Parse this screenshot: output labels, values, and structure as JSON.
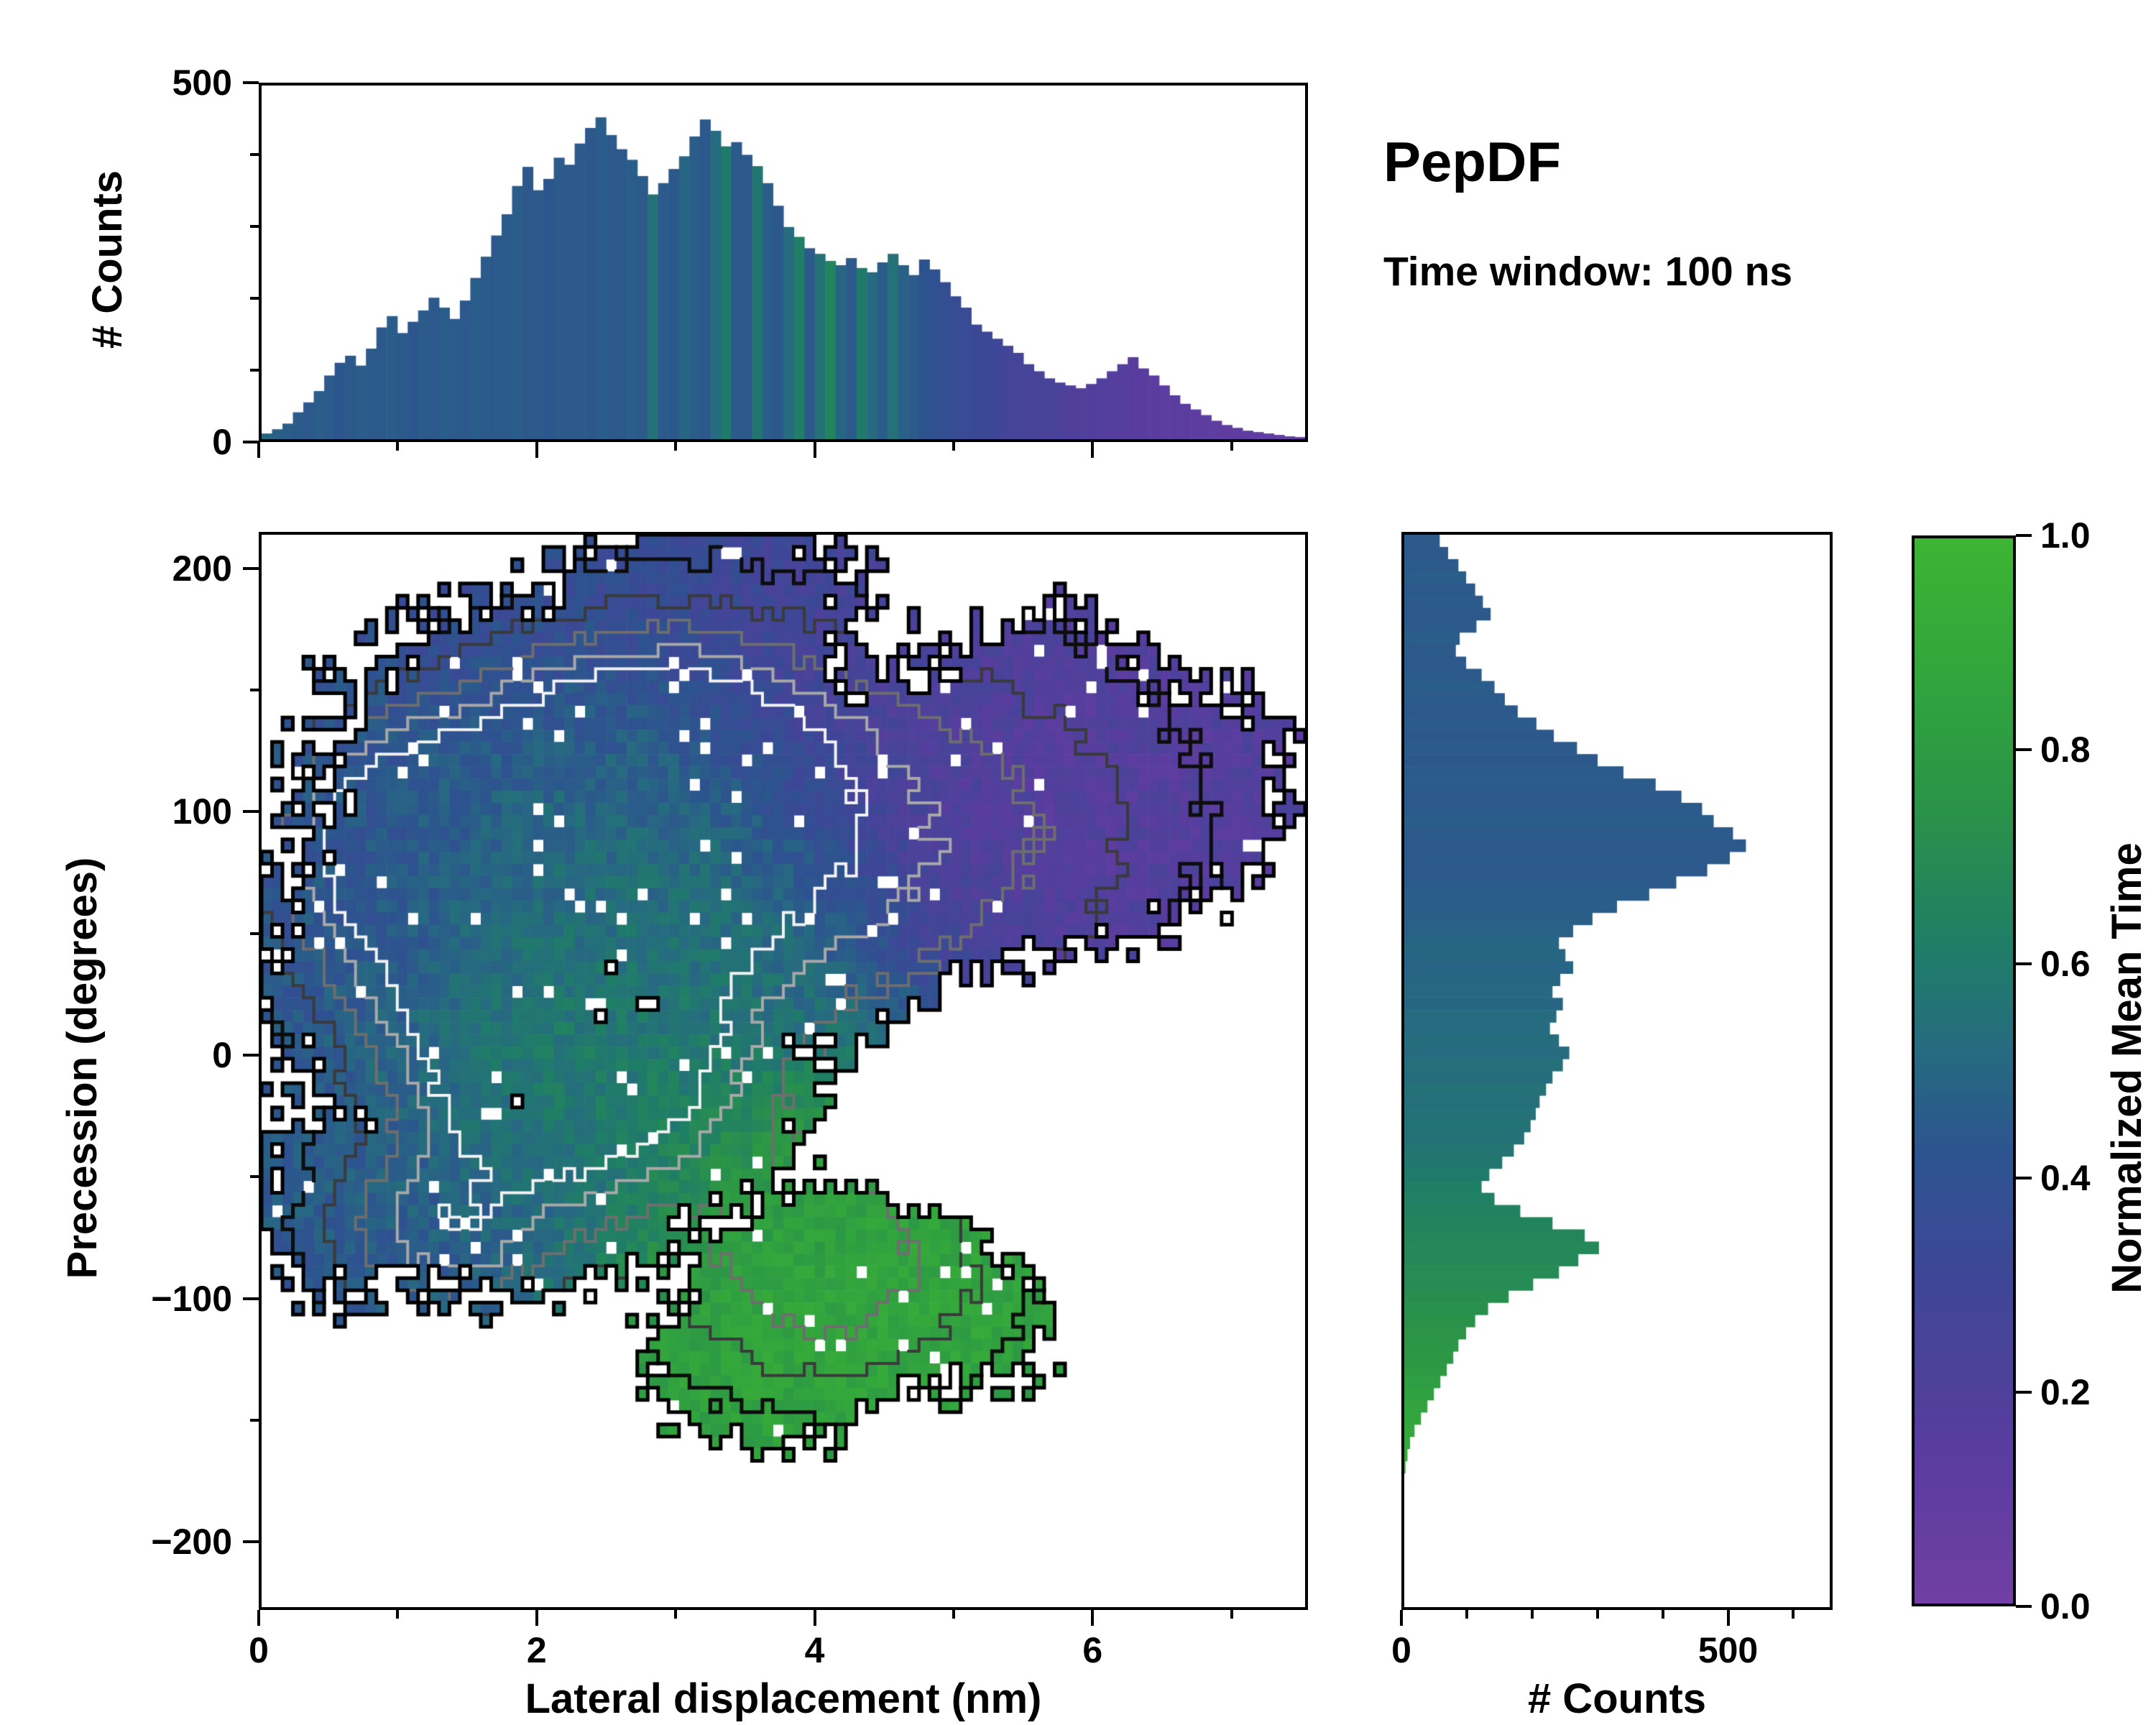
{
  "title": "PepDF",
  "subtitle": "Time window: 100 ns",
  "labels": {
    "top_ylabel": "# Counts",
    "main_xlabel": "Lateral displacement (nm)",
    "main_ylabel": "Precession (degrees)",
    "right_xlabel": "# Counts",
    "colorbar_label": "Normalized Mean Time"
  },
  "chart_data": {
    "type": "heatmap",
    "subtype": "2d-histogram-with-marginal-histograms-and-contours",
    "title": "PepDF",
    "annotation": "Time window: 100 ns",
    "x_axis": {
      "label": "Lateral displacement (nm)",
      "range": [
        0,
        7.55
      ],
      "ticks": [
        {
          "v": 0,
          "label": "0"
        },
        {
          "v": 2,
          "label": "2"
        },
        {
          "v": 4,
          "label": "4"
        },
        {
          "v": 6,
          "label": "6"
        }
      ],
      "minor_ticks": [
        1,
        3,
        5,
        7
      ]
    },
    "y_axis": {
      "label": "Precession (degrees)",
      "range": [
        -228,
        215
      ],
      "ticks": [
        {
          "v": 200,
          "label": "200"
        },
        {
          "v": 100,
          "label": "100"
        },
        {
          "v": 0,
          "label": "0"
        },
        {
          "v": -100,
          "label": "−100"
        },
        {
          "v": -200,
          "label": "−200"
        }
      ],
      "minor_ticks": [
        150,
        50,
        -50,
        -150
      ]
    },
    "colorbar": {
      "label": "Normalized Mean Time",
      "range": [
        0,
        1
      ],
      "ticks": [
        {
          "v": 0.0,
          "label": "0.0"
        },
        {
          "v": 0.2,
          "label": "0.2"
        },
        {
          "v": 0.4,
          "label": "0.4"
        },
        {
          "v": 0.6,
          "label": "0.6"
        },
        {
          "v": 0.8,
          "label": "0.8"
        },
        {
          "v": 1.0,
          "label": "1.0"
        }
      ],
      "stops": [
        {
          "t": 0.0,
          "color": "#713ea5"
        },
        {
          "t": 0.15,
          "color": "#583d9e"
        },
        {
          "t": 0.3,
          "color": "#3f4697"
        },
        {
          "t": 0.42,
          "color": "#2d538f"
        },
        {
          "t": 0.52,
          "color": "#266b80"
        },
        {
          "t": 0.62,
          "color": "#1f7e66"
        },
        {
          "t": 0.75,
          "color": "#2a9348"
        },
        {
          "t": 0.88,
          "color": "#33a63c"
        },
        {
          "t": 1.0,
          "color": "#3eb434"
        }
      ]
    },
    "top_histogram": {
      "ylabel": "# Counts",
      "ylim": [
        0,
        500
      ],
      "yticks": [
        {
          "v": 0,
          "label": "0"
        },
        {
          "v": 500,
          "label": "500"
        }
      ],
      "minor_yticks": [
        100,
        200,
        300,
        400
      ],
      "bin_range": [
        0,
        7.5
      ],
      "counts": [
        8,
        14,
        22,
        38,
        52,
        68,
        90,
        108,
        118,
        104,
        128,
        158,
        174,
        150,
        166,
        182,
        200,
        186,
        170,
        196,
        228,
        258,
        288,
        318,
        358,
        385,
        352,
        368,
        398,
        388,
        418,
        440,
        455,
        430,
        410,
        395,
        372,
        346,
        362,
        382,
        400,
        428,
        452,
        436,
        414,
        420,
        402,
        386,
        362,
        330,
        300,
        286,
        270,
        262,
        252,
        246,
        256,
        242,
        236,
        250,
        262,
        246,
        232,
        254,
        240,
        222,
        202,
        186,
        162,
        152,
        142,
        132,
        122,
        106,
        96,
        86,
        80,
        76,
        72,
        78,
        86,
        96,
        106,
        116,
        100,
        90,
        76,
        62,
        50,
        42,
        34,
        26,
        20,
        16,
        12,
        10,
        8,
        6,
        4,
        3
      ],
      "mean_time": [
        0.5,
        0.48,
        0.46,
        0.45,
        0.44,
        0.46,
        0.45,
        0.43,
        0.44,
        0.46,
        0.45,
        0.44,
        0.46,
        0.45,
        0.43,
        0.45,
        0.44,
        0.46,
        0.45,
        0.44,
        0.46,
        0.45,
        0.44,
        0.45,
        0.46,
        0.44,
        0.45,
        0.43,
        0.45,
        0.44,
        0.45,
        0.44,
        0.46,
        0.45,
        0.44,
        0.46,
        0.45,
        0.55,
        0.45,
        0.44,
        0.5,
        0.46,
        0.44,
        0.52,
        0.6,
        0.45,
        0.44,
        0.58,
        0.46,
        0.44,
        0.52,
        0.62,
        0.45,
        0.55,
        0.65,
        0.5,
        0.45,
        0.6,
        0.52,
        0.46,
        0.55,
        0.48,
        0.45,
        0.42,
        0.4,
        0.38,
        0.36,
        0.35,
        0.33,
        0.32,
        0.3,
        0.28,
        0.27,
        0.26,
        0.25,
        0.24,
        0.22,
        0.2,
        0.2,
        0.19,
        0.18,
        0.17,
        0.16,
        0.15,
        0.15,
        0.14,
        0.14,
        0.13,
        0.13,
        0.12,
        0.12,
        0.12,
        0.11,
        0.11,
        0.1,
        0.1,
        0.1,
        0.1,
        0.1,
        0.1
      ]
    },
    "right_histogram": {
      "xlabel": "# Counts",
      "xlim": [
        0,
        660
      ],
      "xticks": [
        {
          "v": 0,
          "label": "0"
        },
        {
          "v": 500,
          "label": "500"
        }
      ],
      "minor_xticks": [
        100,
        200,
        300,
        400,
        600
      ],
      "bin_range": [
        215,
        -225
      ],
      "counts": [
        55,
        68,
        84,
        96,
        110,
        122,
        134,
        112,
        86,
        80,
        96,
        120,
        140,
        156,
        176,
        205,
        232,
        268,
        300,
        340,
        390,
        430,
        462,
        480,
        510,
        530,
        505,
        470,
        422,
        380,
        330,
        292,
        262,
        240,
        250,
        262,
        242,
        230,
        246,
        236,
        226,
        240,
        256,
        246,
        230,
        220,
        210,
        204,
        196,
        186,
        170,
        152,
        132,
        120,
        140,
        180,
        230,
        280,
        302,
        270,
        240,
        200,
        162,
        130,
        110,
        96,
        84,
        76,
        66,
        56,
        46,
        36,
        26,
        16,
        9,
        5,
        2,
        0,
        0,
        0,
        0,
        0,
        0,
        0,
        0,
        0,
        0,
        0
      ],
      "mean_time": [
        0.45,
        0.44,
        0.45,
        0.46,
        0.44,
        0.45,
        0.44,
        0.45,
        0.46,
        0.45,
        0.44,
        0.45,
        0.46,
        0.45,
        0.44,
        0.45,
        0.44,
        0.45,
        0.44,
        0.45,
        0.45,
        0.44,
        0.45,
        0.46,
        0.45,
        0.44,
        0.45,
        0.44,
        0.45,
        0.46,
        0.46,
        0.47,
        0.48,
        0.5,
        0.5,
        0.49,
        0.5,
        0.51,
        0.5,
        0.52,
        0.52,
        0.53,
        0.52,
        0.54,
        0.53,
        0.55,
        0.54,
        0.55,
        0.56,
        0.55,
        0.57,
        0.58,
        0.6,
        0.62,
        0.63,
        0.64,
        0.66,
        0.67,
        0.68,
        0.68,
        0.7,
        0.7,
        0.72,
        0.73,
        0.74,
        0.76,
        0.77,
        0.78,
        0.8,
        0.82,
        0.84,
        0.86,
        0.87,
        0.88,
        0.9,
        0.9,
        0.92,
        0.92,
        0.92,
        0.92,
        0.92,
        0.92,
        0.92,
        0.92,
        0.92,
        0.92,
        0.92,
        0.92
      ]
    },
    "heatmap_model": {
      "grid": {
        "nx": 100,
        "ny": 88
      },
      "seed": 42,
      "hole_fraction": 0.03,
      "mask_blobs": [
        {
          "x": 2.6,
          "y": 110,
          "sx": 2.4,
          "sy": 95,
          "a": 1.0
        },
        {
          "x": 1.4,
          "y": 40,
          "sx": 1.6,
          "sy": 90,
          "a": 0.9
        },
        {
          "x": 3.2,
          "y": 180,
          "sx": 1.5,
          "sy": 55,
          "a": 0.8
        },
        {
          "x": 5.3,
          "y": 100,
          "sx": 2.0,
          "sy": 75,
          "a": 0.95
        },
        {
          "x": 6.6,
          "y": 110,
          "sx": 1.1,
          "sy": 55,
          "a": 0.8
        },
        {
          "x": 5.8,
          "y": 150,
          "sx": 1.0,
          "sy": 45,
          "a": 0.7
        },
        {
          "x": 3.8,
          "y": 60,
          "sx": 1.8,
          "sy": 80,
          "a": 0.9
        },
        {
          "x": 3.1,
          "y": -20,
          "sx": 1.5,
          "sy": 60,
          "a": 0.85
        },
        {
          "x": 1.8,
          "y": -55,
          "sx": 1.8,
          "sy": 55,
          "a": 0.85
        },
        {
          "x": 0.6,
          "y": -60,
          "sx": 0.9,
          "sy": 55,
          "a": 0.7
        },
        {
          "x": 4.7,
          "y": -90,
          "sx": 1.8,
          "sy": 55,
          "a": 0.95
        },
        {
          "x": 3.7,
          "y": -125,
          "sx": 1.1,
          "sy": 45,
          "a": 0.85
        },
        {
          "x": 5.2,
          "y": -30,
          "sx": 1.0,
          "sy": 28,
          "a": -0.6
        },
        {
          "x": 6.3,
          "y": -45,
          "sx": 1.3,
          "sy": 55,
          "a": -0.9
        }
      ],
      "base_value": {
        "v": 0.42,
        "w": 0.35
      },
      "value_blobs": [
        {
          "x": 6.0,
          "y": 130,
          "sx": 1.8,
          "sy": 80,
          "v": 0.13,
          "w": 2.2
        },
        {
          "x": 6.8,
          "y": 60,
          "sx": 1.2,
          "sy": 60,
          "v": 0.15,
          "w": 1.5
        },
        {
          "x": 4.6,
          "y": 170,
          "sx": 1.5,
          "sy": 50,
          "v": 0.25,
          "w": 1.2
        },
        {
          "x": 1.6,
          "y": 175,
          "sx": 1.3,
          "sy": 45,
          "v": 0.33,
          "w": 1.0
        },
        {
          "x": 0.7,
          "y": 90,
          "sx": 1.0,
          "sy": 70,
          "v": 0.42,
          "w": 1.2
        },
        {
          "x": 2.6,
          "y": 100,
          "sx": 1.3,
          "sy": 60,
          "v": 0.52,
          "w": 1.5
        },
        {
          "x": 3.0,
          "y": 40,
          "sx": 1.3,
          "sy": 55,
          "v": 0.6,
          "w": 1.4
        },
        {
          "x": 2.1,
          "y": -15,
          "sx": 1.1,
          "sy": 45,
          "v": 0.66,
          "w": 1.6
        },
        {
          "x": 1.4,
          "y": -70,
          "sx": 1.4,
          "sy": 50,
          "v": 0.46,
          "w": 1.6
        },
        {
          "x": 0.8,
          "y": -30,
          "sx": 1.0,
          "sy": 50,
          "v": 0.44,
          "w": 1.2
        },
        {
          "x": 4.7,
          "y": -95,
          "sx": 1.6,
          "sy": 60,
          "v": 0.92,
          "w": 3.0
        },
        {
          "x": 3.6,
          "y": -130,
          "sx": 1.1,
          "sy": 45,
          "v": 0.9,
          "w": 2.2
        },
        {
          "x": 4.2,
          "y": -55,
          "sx": 0.9,
          "sy": 35,
          "v": 0.8,
          "w": 1.5
        }
      ],
      "density_blobs": [
        {
          "x": 2.8,
          "y": 115,
          "sx": 1.2,
          "sy": 55,
          "a": 1.0
        },
        {
          "x": 2.2,
          "y": -5,
          "sx": 1.0,
          "sy": 48,
          "a": 0.95
        },
        {
          "x": 1.7,
          "y": 60,
          "sx": 1.3,
          "sy": 65,
          "a": 0.7
        },
        {
          "x": 0.9,
          "y": 95,
          "sx": 0.8,
          "sy": 45,
          "a": 0.55
        },
        {
          "x": 1.3,
          "y": -75,
          "sx": 0.9,
          "sy": 38,
          "a": 0.6
        },
        {
          "x": 4.1,
          "y": -90,
          "sx": 1.3,
          "sy": 55,
          "a": 0.5
        },
        {
          "x": 3.3,
          "y": 60,
          "sx": 2.4,
          "sy": 110,
          "a": 0.45
        },
        {
          "x": 5.2,
          "y": 100,
          "sx": 1.7,
          "sy": 75,
          "a": 0.3
        }
      ],
      "contour_levels": [
        {
          "level": 0.16,
          "color": "#0d0d0d",
          "width": 5
        },
        {
          "level": 0.3,
          "color": "#3a3a3a",
          "width": 4
        },
        {
          "level": 0.45,
          "color": "#6e6e6e",
          "width": 4
        },
        {
          "level": 0.6,
          "color": "#a8a8a8",
          "width": 4
        },
        {
          "level": 0.75,
          "color": "#f2f2f2",
          "width": 4
        }
      ]
    }
  }
}
